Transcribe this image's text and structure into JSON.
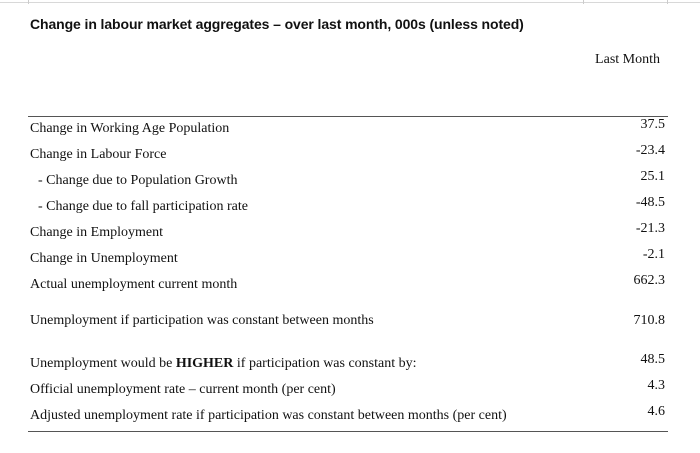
{
  "title": "Change in labour market aggregates – over last month, 000s (unless noted)",
  "column_header": "Last Month",
  "rows": [
    {
      "label": "Change in Working Age Population",
      "value": "37.5"
    },
    {
      "label": "Change in Labour Force",
      "value": "-23.4"
    },
    {
      "label": "- Change due to Population Growth",
      "value": "25.1"
    },
    {
      "label": "- Change due to fall participation rate",
      "value": "-48.5"
    },
    {
      "label": "Change in Employment",
      "value": "-21.3"
    },
    {
      "label": "Change in Unemployment",
      "value": "-2.1"
    },
    {
      "label": "Actual unemployment current month",
      "value": "662.3"
    },
    {
      "label": "Unemployment if participation was constant between months",
      "value": "710.8"
    },
    {
      "label_pre": "Unemployment would be ",
      "label_bold": "HIGHER",
      "label_post": " if participation was constant by:",
      "value": "48.5"
    },
    {
      "label": "Official unemployment rate – current month (per cent)",
      "value": "4.3"
    },
    {
      "label": "Adjusted unemployment rate if participation was constant between months (per cent)",
      "value": "4.6"
    }
  ]
}
